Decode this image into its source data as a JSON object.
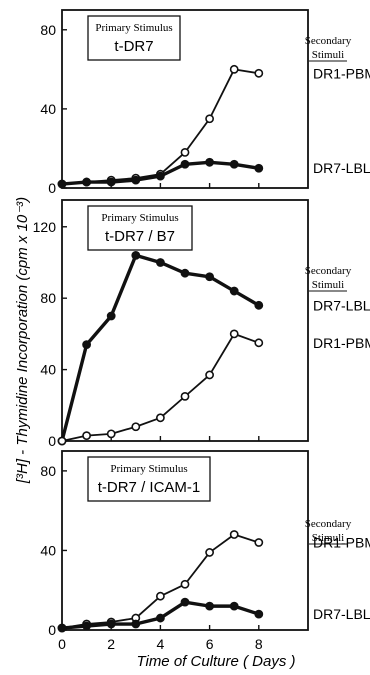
{
  "figure": {
    "ylabel": "[³H] - Thymidine Incorporation  (cpm x 10⁻³)",
    "xlabel": "Time of Culture  ( Days )"
  },
  "chart_data": [
    {
      "type": "line",
      "box_title": "Primary Stimulus",
      "box_value": "t-DR7",
      "side_title": [
        "Secondary",
        "Stimuli"
      ],
      "ylim": [
        0,
        90
      ],
      "yticks": [
        0,
        40,
        80
      ],
      "xlim": [
        0,
        10
      ],
      "xticks": [
        0,
        2,
        4,
        6,
        8
      ],
      "series": [
        {
          "name": "DR1-PBMC",
          "marker": "open",
          "x": [
            0,
            1,
            2,
            3,
            4,
            5,
            6,
            7,
            8
          ],
          "y": [
            2,
            3,
            4,
            5,
            7,
            18,
            35,
            60,
            58
          ]
        },
        {
          "name": "DR7-LBL",
          "marker": "filled",
          "x": [
            0,
            1,
            2,
            3,
            4,
            5,
            6,
            7,
            8
          ],
          "y": [
            2,
            3,
            3,
            4,
            6,
            12,
            13,
            12,
            10
          ]
        }
      ]
    },
    {
      "type": "line",
      "box_title": "Primary Stimulus",
      "box_value": "t-DR7 / B7",
      "side_title": [
        "Secondary",
        "Stimuli"
      ],
      "ylim": [
        0,
        135
      ],
      "yticks": [
        0,
        40,
        80,
        120
      ],
      "xlim": [
        0,
        10
      ],
      "xticks": [
        0,
        2,
        4,
        6,
        8
      ],
      "series": [
        {
          "name": "DR7-LBL",
          "marker": "filled",
          "x": [
            0,
            1,
            2,
            3,
            4,
            5,
            6,
            7,
            8
          ],
          "y": [
            0,
            54,
            70,
            104,
            100,
            94,
            92,
            84,
            76
          ]
        },
        {
          "name": "DR1-PBMC",
          "marker": "open",
          "x": [
            0,
            1,
            2,
            3,
            4,
            5,
            6,
            7,
            8
          ],
          "y": [
            0,
            3,
            4,
            8,
            13,
            25,
            37,
            60,
            55
          ]
        }
      ]
    },
    {
      "type": "line",
      "box_title": "Primary Stimulus",
      "box_value": "t-DR7 / ICAM-1",
      "side_title": [
        "Secondary",
        "Stimuli"
      ],
      "ylim": [
        0,
        90
      ],
      "yticks": [
        0,
        40,
        80
      ],
      "xlim": [
        0,
        10
      ],
      "xticks": [
        0,
        2,
        4,
        6,
        8
      ],
      "series": [
        {
          "name": "DR1-PBMC",
          "marker": "open",
          "x": [
            0,
            1,
            2,
            3,
            4,
            5,
            6,
            7,
            8
          ],
          "y": [
            1,
            3,
            4,
            6,
            17,
            23,
            39,
            48,
            44
          ]
        },
        {
          "name": "DR7-LBL",
          "marker": "filled",
          "x": [
            0,
            1,
            2,
            3,
            4,
            5,
            6,
            7,
            8
          ],
          "y": [
            1,
            2,
            3,
            3,
            6,
            14,
            12,
            12,
            8
          ]
        }
      ]
    }
  ]
}
